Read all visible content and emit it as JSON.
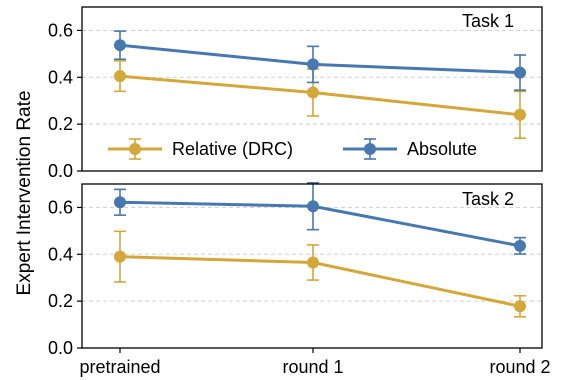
{
  "chart_data": [
    {
      "type": "line",
      "title": "Task 1",
      "ylabel": "Expert Intervention Rate",
      "categories": [
        "pretrained",
        "round 1",
        "round 2"
      ],
      "ylim": [
        0.0,
        0.7
      ],
      "yticks": [
        "0.0",
        "0.2",
        "0.4",
        "0.6"
      ],
      "grid": "horizontal dashed",
      "legend": {
        "placement": "lower-center",
        "entries": [
          "Relative (DRC)",
          "Absolute"
        ]
      },
      "series": [
        {
          "name": "Relative (DRC)",
          "color": "#D4A73A",
          "values": [
            0.405,
            0.335,
            0.24
          ],
          "err": [
            0.065,
            0.1,
            0.1
          ]
        },
        {
          "name": "Absolute",
          "color": "#4878B0",
          "values": [
            0.537,
            0.455,
            0.42
          ],
          "err": [
            0.06,
            0.077,
            0.075
          ]
        }
      ]
    },
    {
      "type": "line",
      "title": "Task 2",
      "ylabel": "Expert Intervention Rate",
      "categories": [
        "pretrained",
        "round 1",
        "round 2"
      ],
      "ylim": [
        0.0,
        0.7
      ],
      "yticks": [
        "0.0",
        "0.2",
        "0.4",
        "0.6"
      ],
      "grid": "horizontal dashed",
      "series": [
        {
          "name": "Relative (DRC)",
          "color": "#D4A73A",
          "values": [
            0.39,
            0.365,
            0.178
          ],
          "err": [
            0.108,
            0.075,
            0.045
          ]
        },
        {
          "name": "Absolute",
          "color": "#4878B0",
          "values": [
            0.622,
            0.605,
            0.436
          ],
          "err": [
            0.055,
            0.1,
            0.035
          ]
        }
      ]
    }
  ]
}
